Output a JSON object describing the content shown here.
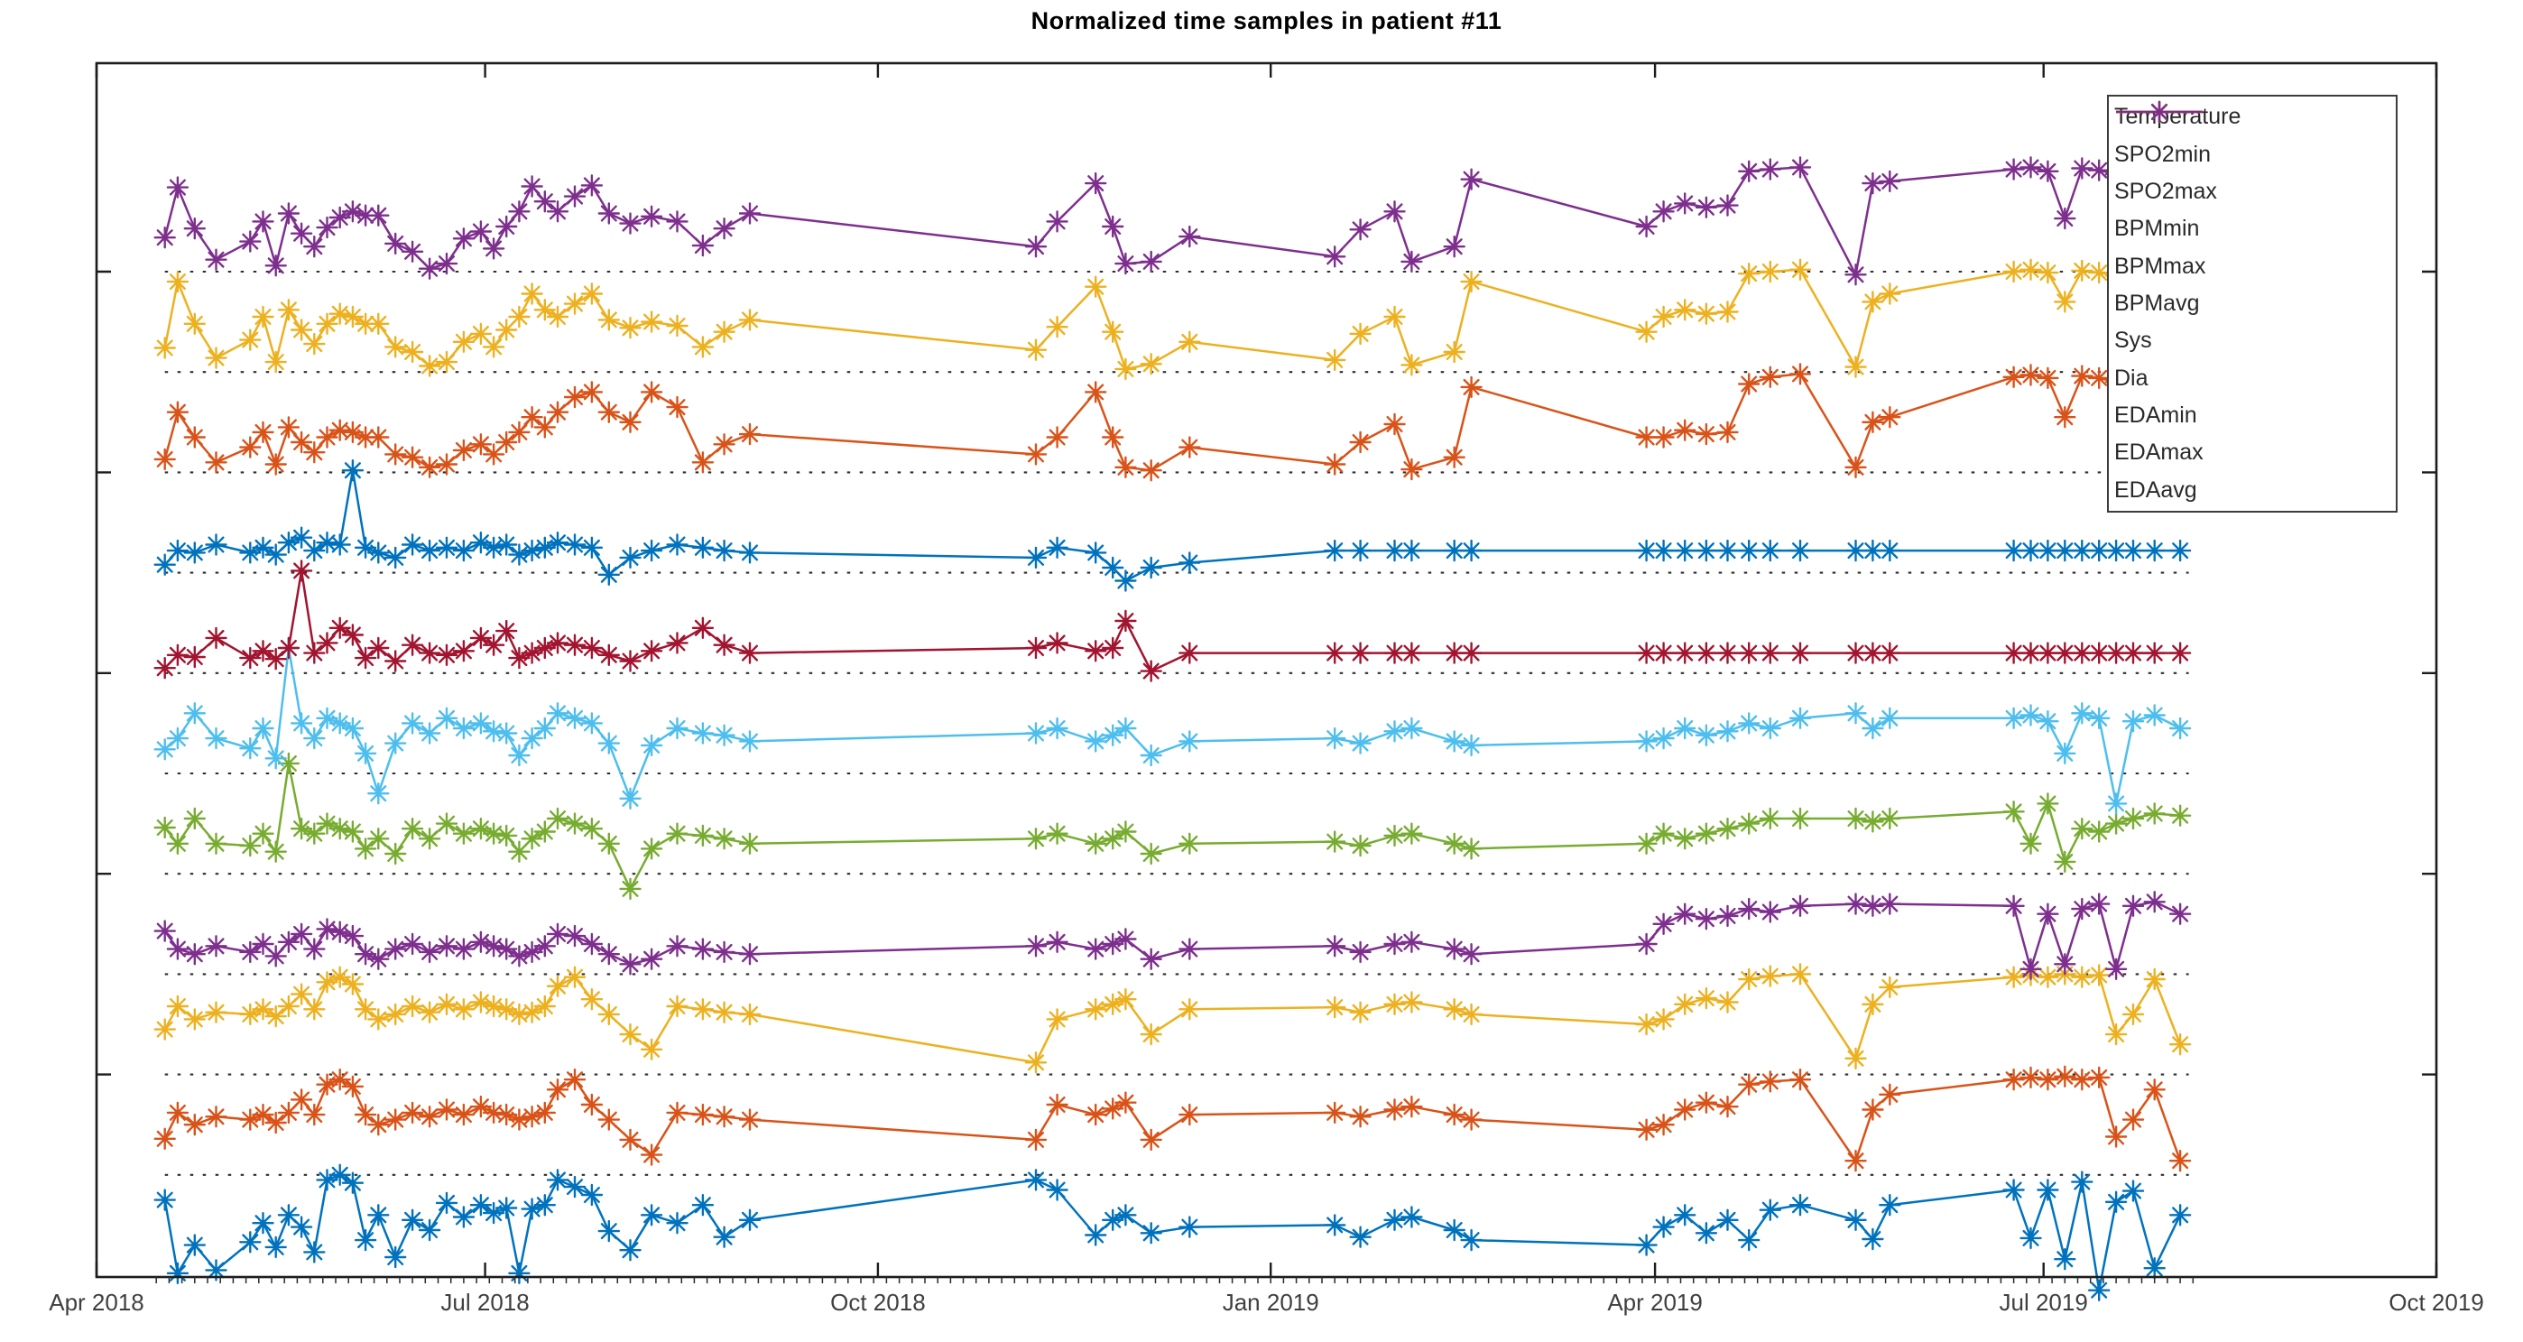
{
  "title": "Normalized time samples in patient #11",
  "chart_data": {
    "type": "line",
    "title": "Normalized time samples in patient #11",
    "marker": "asterisk",
    "grid": "horizontal-dotted-baselines",
    "legend_position": "top-right-inside",
    "x_axis": {
      "kind": "datetime",
      "tick_labels": [
        "Apr 2018",
        "Jul 2018",
        "Oct 2018",
        "Jan 2019",
        "Apr 2019",
        "Jul 2019",
        "Oct 2019"
      ],
      "tick_days": [
        0,
        91,
        183,
        275,
        365,
        456,
        548
      ],
      "range_days": [
        0,
        548
      ],
      "minor_ticks": {
        "start_day": 14,
        "end_day": 492,
        "step_days": 3
      }
    },
    "y_axis": {
      "tick_levels": [
        2,
        4,
        6,
        8,
        10
      ],
      "range": [
        0,
        12.08
      ],
      "tick_labels_shown": false,
      "baseline_levels": [
        1,
        2,
        3,
        4,
        5,
        6,
        7,
        8,
        9,
        10
      ],
      "baseline_color": "#2e2e2e",
      "baseline_span_days": [
        16,
        490
      ]
    },
    "x_days": [
      16,
      19,
      23,
      28,
      36,
      39,
      42,
      45,
      48,
      51,
      54,
      57,
      60,
      63,
      66,
      70,
      74,
      78,
      82,
      86,
      90,
      93,
      96,
      99,
      102,
      105,
      108,
      112,
      116,
      120,
      125,
      130,
      136,
      142,
      147,
      153,
      220,
      225,
      234,
      238,
      241,
      247,
      256,
      290,
      296,
      304,
      308,
      318,
      322,
      363,
      367,
      372,
      377,
      382,
      387,
      392,
      399,
      412,
      416,
      420,
      449,
      453,
      457,
      461,
      465,
      469,
      473,
      477,
      482,
      488
    ],
    "series": [
      {
        "name": "Temperature",
        "color": "#0072BD",
        "offset": 0,
        "values": [
          0.75,
          0.02,
          0.3,
          0.05,
          0.33,
          0.52,
          0.28,
          0.6,
          0.48,
          0.23,
          0.95,
          1.0,
          0.92,
          0.35,
          0.6,
          0.18,
          0.55,
          0.45,
          0.72,
          0.58,
          0.7,
          0.62,
          0.67,
          0.02,
          0.66,
          0.7,
          0.95,
          0.88,
          0.8,
          0.44,
          0.25,
          0.6,
          0.52,
          0.7,
          0.38,
          0.55,
          0.95,
          0.85,
          0.4,
          0.55,
          0.6,
          0.42,
          0.48,
          0.5,
          0.38,
          0.55,
          0.58,
          0.45,
          0.35,
          0.3,
          0.48,
          0.6,
          0.42,
          0.55,
          0.35,
          0.65,
          0.7,
          0.55,
          0.36,
          0.7,
          0.85,
          0.37,
          0.85,
          0.16,
          0.93,
          -0.15,
          0.73,
          0.84,
          0.07,
          0.6
        ]
      },
      {
        "name": "SPO2min",
        "color": "#D95319",
        "offset": 1,
        "values": [
          0.36,
          0.62,
          0.5,
          0.58,
          0.55,
          0.6,
          0.52,
          0.62,
          0.75,
          0.6,
          0.9,
          0.95,
          0.88,
          0.6,
          0.5,
          0.55,
          0.62,
          0.58,
          0.65,
          0.6,
          0.68,
          0.62,
          0.6,
          0.55,
          0.58,
          0.62,
          0.85,
          0.95,
          0.7,
          0.55,
          0.35,
          0.2,
          0.62,
          0.6,
          0.58,
          0.55,
          0.35,
          0.7,
          0.6,
          0.66,
          0.72,
          0.35,
          0.6,
          0.62,
          0.58,
          0.65,
          0.68,
          0.6,
          0.55,
          0.45,
          0.5,
          0.65,
          0.72,
          0.68,
          0.9,
          0.93,
          0.95,
          0.14,
          0.65,
          0.8,
          0.95,
          0.97,
          0.95,
          0.98,
          0.95,
          0.97,
          0.38,
          0.55,
          0.85,
          0.14
        ]
      },
      {
        "name": "SPO2max",
        "color": "#EDB120",
        "offset": 2,
        "values": [
          0.45,
          0.68,
          0.55,
          0.62,
          0.6,
          0.65,
          0.58,
          0.68,
          0.8,
          0.65,
          0.92,
          0.97,
          0.9,
          0.65,
          0.55,
          0.6,
          0.68,
          0.62,
          0.7,
          0.65,
          0.72,
          0.68,
          0.65,
          0.6,
          0.62,
          0.68,
          0.88,
          0.97,
          0.75,
          0.6,
          0.4,
          0.25,
          0.68,
          0.65,
          0.62,
          0.6,
          0.12,
          0.55,
          0.65,
          0.7,
          0.75,
          0.4,
          0.65,
          0.67,
          0.62,
          0.7,
          0.72,
          0.65,
          0.6,
          0.5,
          0.55,
          0.7,
          0.76,
          0.72,
          0.95,
          0.98,
          1.0,
          0.16,
          0.7,
          0.87,
          0.97,
          0.99,
          0.97,
          1.0,
          0.97,
          0.99,
          0.4,
          0.6,
          0.95,
          0.3
        ]
      },
      {
        "name": "BPMmin",
        "color": "#7E2F8E",
        "offset": 3,
        "values": [
          0.43,
          0.25,
          0.2,
          0.28,
          0.22,
          0.3,
          0.18,
          0.32,
          0.4,
          0.25,
          0.45,
          0.42,
          0.38,
          0.2,
          0.15,
          0.25,
          0.3,
          0.22,
          0.28,
          0.25,
          0.32,
          0.28,
          0.25,
          0.18,
          0.22,
          0.28,
          0.4,
          0.38,
          0.3,
          0.2,
          0.1,
          0.15,
          0.28,
          0.25,
          0.22,
          0.2,
          0.28,
          0.32,
          0.25,
          0.3,
          0.35,
          0.15,
          0.25,
          0.28,
          0.22,
          0.3,
          0.32,
          0.25,
          0.2,
          0.3,
          0.5,
          0.6,
          0.55,
          0.58,
          0.65,
          0.62,
          0.68,
          0.7,
          0.68,
          0.7,
          0.68,
          0.05,
          0.6,
          0.1,
          0.65,
          0.7,
          0.05,
          0.68,
          0.72,
          0.6
        ]
      },
      {
        "name": "BPMmax",
        "color": "#77AC30",
        "offset": 4,
        "values": [
          0.46,
          0.3,
          0.55,
          0.3,
          0.28,
          0.4,
          0.22,
          1.1,
          0.45,
          0.4,
          0.5,
          0.45,
          0.42,
          0.25,
          0.35,
          0.2,
          0.45,
          0.35,
          0.5,
          0.4,
          0.45,
          0.4,
          0.38,
          0.22,
          0.35,
          0.42,
          0.55,
          0.5,
          0.45,
          0.3,
          -0.15,
          0.25,
          0.4,
          0.38,
          0.35,
          0.3,
          0.35,
          0.4,
          0.3,
          0.35,
          0.42,
          0.2,
          0.3,
          0.32,
          0.28,
          0.38,
          0.4,
          0.3,
          0.25,
          0.3,
          0.4,
          0.35,
          0.4,
          0.45,
          0.5,
          0.55,
          0.55,
          0.55,
          0.52,
          0.55,
          0.62,
          0.3,
          0.7,
          0.12,
          0.45,
          0.42,
          0.5,
          0.55,
          0.6,
          0.58
        ]
      },
      {
        "name": "BPMavg",
        "color": "#4DBEEE",
        "offset": 5,
        "values": [
          0.24,
          0.35,
          0.6,
          0.35,
          0.25,
          0.45,
          0.15,
          1.25,
          0.5,
          0.35,
          0.55,
          0.5,
          0.45,
          0.2,
          -0.2,
          0.3,
          0.5,
          0.4,
          0.55,
          0.45,
          0.5,
          0.42,
          0.4,
          0.18,
          0.35,
          0.45,
          0.6,
          0.55,
          0.5,
          0.3,
          -0.25,
          0.28,
          0.45,
          0.4,
          0.38,
          0.32,
          0.4,
          0.45,
          0.32,
          0.38,
          0.45,
          0.18,
          0.32,
          0.35,
          0.3,
          0.42,
          0.45,
          0.32,
          0.28,
          0.32,
          0.35,
          0.45,
          0.38,
          0.42,
          0.5,
          0.45,
          0.55,
          0.6,
          0.45,
          0.55,
          0.55,
          0.58,
          0.52,
          0.2,
          0.6,
          0.55,
          -0.3,
          0.52,
          0.58,
          0.45
        ]
      },
      {
        "name": "Sys",
        "color": "#A2142F",
        "offset": 6,
        "values": [
          0.05,
          0.18,
          0.16,
          0.35,
          0.15,
          0.22,
          0.14,
          0.25,
          1.02,
          0.2,
          0.3,
          0.45,
          0.38,
          0.15,
          0.25,
          0.12,
          0.28,
          0.2,
          0.18,
          0.22,
          0.35,
          0.28,
          0.42,
          0.15,
          0.2,
          0.25,
          0.3,
          0.28,
          0.25,
          0.18,
          0.12,
          0.22,
          0.3,
          0.45,
          0.28,
          0.2,
          0.25,
          0.3,
          0.22,
          0.25,
          0.52,
          0.02,
          0.2,
          0.2,
          0.2,
          0.2,
          0.2,
          0.2,
          0.2,
          0.2,
          0.2,
          0.2,
          0.2,
          0.2,
          0.2,
          0.2,
          0.2,
          0.2,
          0.2,
          0.2,
          0.2,
          0.2,
          0.2,
          0.2,
          0.2,
          0.2,
          0.2,
          0.2,
          0.2,
          0.2
        ]
      },
      {
        "name": "Dia",
        "color": "#0072BD",
        "offset": 7,
        "values": [
          0.08,
          0.22,
          0.2,
          0.28,
          0.2,
          0.25,
          0.18,
          0.3,
          0.35,
          0.22,
          0.3,
          0.28,
          1.02,
          0.25,
          0.2,
          0.15,
          0.28,
          0.22,
          0.25,
          0.22,
          0.3,
          0.25,
          0.28,
          0.18,
          0.22,
          0.25,
          0.3,
          0.28,
          0.25,
          -0.02,
          0.15,
          0.22,
          0.28,
          0.25,
          0.22,
          0.2,
          0.15,
          0.25,
          0.2,
          0.05,
          -0.08,
          0.05,
          0.1,
          0.22,
          0.22,
          0.22,
          0.22,
          0.22,
          0.22,
          0.22,
          0.22,
          0.22,
          0.22,
          0.22,
          0.22,
          0.22,
          0.22,
          0.22,
          0.22,
          0.22,
          0.22,
          0.22,
          0.22,
          0.22,
          0.22,
          0.22,
          0.22,
          0.22,
          0.22,
          0.22
        ]
      },
      {
        "name": "EDAmin",
        "color": "#D95319",
        "offset": 8,
        "values": [
          0.13,
          0.6,
          0.35,
          0.1,
          0.25,
          0.4,
          0.08,
          0.45,
          0.3,
          0.2,
          0.35,
          0.42,
          0.4,
          0.35,
          0.35,
          0.18,
          0.15,
          0.05,
          0.08,
          0.22,
          0.28,
          0.18,
          0.3,
          0.4,
          0.55,
          0.45,
          0.6,
          0.75,
          0.8,
          0.6,
          0.5,
          0.8,
          0.65,
          0.1,
          0.28,
          0.38,
          0.18,
          0.35,
          0.8,
          0.35,
          0.05,
          0.02,
          0.25,
          0.08,
          0.3,
          0.48,
          0.03,
          0.15,
          0.85,
          0.35,
          0.35,
          0.42,
          0.38,
          0.4,
          0.88,
          0.95,
          0.98,
          0.05,
          0.5,
          0.55,
          0.95,
          0.97,
          0.94,
          0.55,
          0.96,
          0.94,
          0.9,
          0.95,
          0.97,
          0.9
        ]
      },
      {
        "name": "EDAmax",
        "color": "#EDB120",
        "offset": 9,
        "values": [
          0.24,
          0.9,
          0.48,
          0.14,
          0.32,
          0.55,
          0.1,
          0.62,
          0.42,
          0.28,
          0.48,
          0.58,
          0.55,
          0.48,
          0.48,
          0.25,
          0.2,
          0.06,
          0.1,
          0.3,
          0.38,
          0.25,
          0.42,
          0.55,
          0.78,
          0.62,
          0.55,
          0.68,
          0.78,
          0.52,
          0.44,
          0.5,
          0.46,
          0.25,
          0.4,
          0.52,
          0.22,
          0.45,
          0.85,
          0.4,
          0.03,
          0.08,
          0.3,
          0.12,
          0.38,
          0.55,
          0.07,
          0.2,
          0.9,
          0.4,
          0.55,
          0.62,
          0.58,
          0.6,
          0.98,
          1.0,
          1.02,
          0.05,
          0.7,
          0.78,
          1.0,
          1.02,
          0.99,
          0.7,
          1.01,
          0.99,
          0.96,
          1.0,
          1.02,
          0.96
        ]
      },
      {
        "name": "EDAavg",
        "color": "#7E2F8E",
        "offset": 10,
        "values": [
          0.34,
          0.84,
          0.43,
          0.12,
          0.3,
          0.5,
          0.06,
          0.58,
          0.38,
          0.25,
          0.44,
          0.54,
          0.6,
          0.56,
          0.56,
          0.28,
          0.2,
          0.03,
          0.08,
          0.33,
          0.4,
          0.23,
          0.45,
          0.6,
          0.85,
          0.7,
          0.6,
          0.75,
          0.86,
          0.58,
          0.48,
          0.55,
          0.5,
          0.26,
          0.43,
          0.58,
          0.25,
          0.5,
          0.88,
          0.45,
          0.08,
          0.1,
          0.35,
          0.15,
          0.42,
          0.6,
          0.1,
          0.25,
          0.92,
          0.45,
          0.6,
          0.68,
          0.64,
          0.66,
          1.0,
          1.02,
          1.04,
          -0.03,
          0.88,
          0.9,
          1.02,
          1.04,
          1.0,
          0.53,
          1.03,
          1.01,
          0.97,
          1.02,
          1.04,
          0.98
        ]
      }
    ]
  }
}
